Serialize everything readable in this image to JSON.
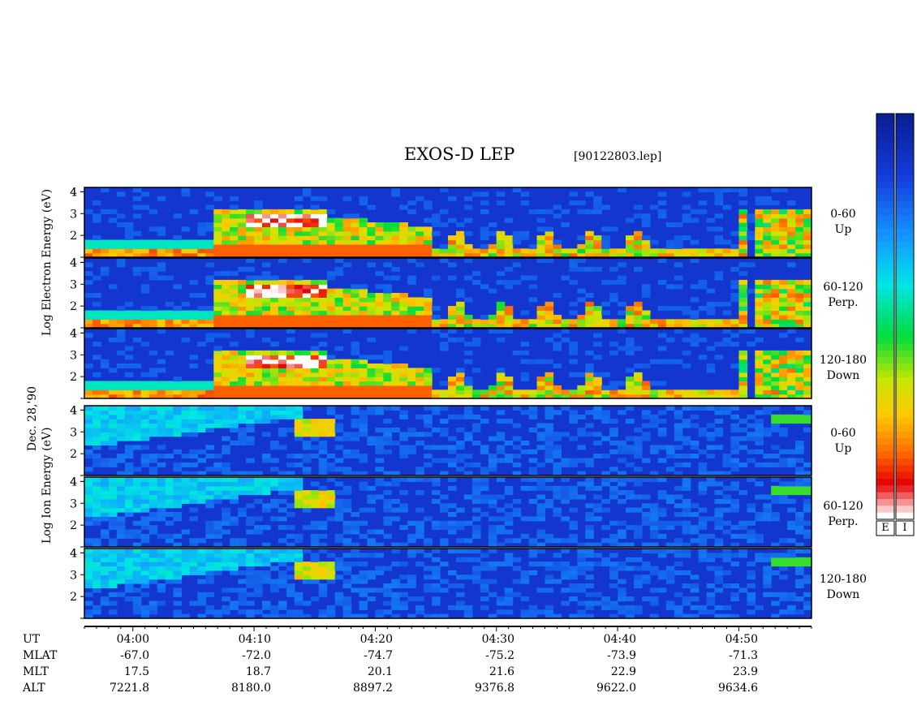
{
  "title": "EXOS-D LEP",
  "filename": "[90122803.lep]",
  "date_label": "Dec. 28,'90",
  "electron_axis_label": [
    "Log",
    "Electron",
    "Energy",
    "(eV)"
  ],
  "ion_axis_label": [
    "Log",
    "Ion",
    "Energy",
    "(eV)"
  ],
  "pitch_labels": [
    {
      "range": "0-60",
      "dir": "Up"
    },
    {
      "range": "60-120",
      "dir": "Perp."
    },
    {
      "range": "120-180",
      "dir": "Down"
    },
    {
      "range": "0-60",
      "dir": "Up"
    },
    {
      "range": "60-120",
      "dir": "Perp."
    },
    {
      "range": "120-180",
      "dir": "Down"
    }
  ],
  "colorbar_labels": [
    "E",
    "I"
  ],
  "colors": {
    "low": "#0a1e9c",
    "high": "#ffffff"
  },
  "chart_data": {
    "type": "heatmap",
    "title": "EXOS-D LEP",
    "panels": [
      {
        "species": "Electron",
        "pitch": "0-60",
        "dir": "Up"
      },
      {
        "species": "Electron",
        "pitch": "60-120",
        "dir": "Perp."
      },
      {
        "species": "Electron",
        "pitch": "120-180",
        "dir": "Down"
      },
      {
        "species": "Ion",
        "pitch": "0-60",
        "dir": "Up"
      },
      {
        "species": "Ion",
        "pitch": "60-120",
        "dir": "Perp."
      },
      {
        "species": "Ion",
        "pitch": "120-180",
        "dir": "Down"
      }
    ],
    "y_ticks": [
      "2",
      "3",
      "4"
    ],
    "ylim": [
      1,
      4.2
    ],
    "x_ticks": [
      "04:00",
      "04:10",
      "04:20",
      "04:30",
      "04:40",
      "04:50"
    ],
    "xlim_minutes_from_0400": [
      -4,
      56
    ],
    "row_labels": [
      "UT",
      "MLAT",
      "MLT",
      "ALT"
    ],
    "MLAT": [
      "-67.0",
      "-72.0",
      "-74.7",
      "-75.2",
      "-73.9",
      "-71.3"
    ],
    "MLT": [
      "17.5",
      "18.7",
      "20.1",
      "21.6",
      "22.9",
      "23.9"
    ],
    "ALT": [
      "7221.8",
      "8180.0",
      "8897.2",
      "9376.8",
      "9622.0",
      "9634.6"
    ]
  }
}
